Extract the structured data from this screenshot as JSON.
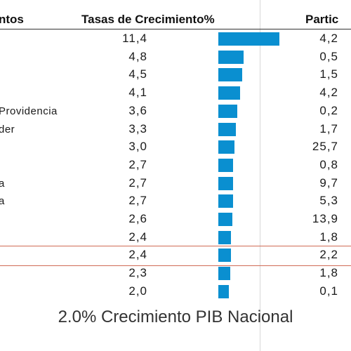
{
  "headers": {
    "departamentos": "ntos",
    "tasas": "Tasas de Crecimiento%",
    "participacion": "Partic"
  },
  "chart_data": {
    "type": "bar",
    "orientation": "horizontal",
    "series": [
      {
        "name": "Tasas de Crecimiento%",
        "values": [
          11.4,
          4.8,
          4.5,
          4.1,
          3.6,
          3.3,
          3.0,
          2.7,
          2.7,
          2.7,
          2.6,
          2.4,
          2.4,
          2.3,
          2.0
        ]
      }
    ],
    "rows": [
      {
        "label": "",
        "rate": "11,4",
        "value": 11.4,
        "share": "4,2"
      },
      {
        "label": "",
        "rate": "4,8",
        "value": 4.8,
        "share": "0,5"
      },
      {
        "label": "",
        "rate": "4,5",
        "value": 4.5,
        "share": "1,5"
      },
      {
        "label": "",
        "rate": "4,1",
        "value": 4.1,
        "share": "4,2"
      },
      {
        "label": " Providencia",
        "rate": "3,6",
        "value": 3.6,
        "share": "0,2"
      },
      {
        "label": "der",
        "rate": "3,3",
        "value": 3.3,
        "share": "1,7"
      },
      {
        "label": "",
        "rate": "3,0",
        "value": 3.0,
        "share": "25,7"
      },
      {
        "label": "",
        "rate": "2,7",
        "value": 2.7,
        "share": "0,8"
      },
      {
        "label": "a",
        "rate": "2,7",
        "value": 2.7,
        "share": "9,7"
      },
      {
        "label": "a",
        "rate": "2,7",
        "value": 2.7,
        "share": "5,3"
      },
      {
        "label": "",
        "rate": "2,6",
        "value": 2.6,
        "share": "13,9"
      },
      {
        "label": "",
        "rate": "2,4",
        "value": 2.4,
        "share": "1,8"
      },
      {
        "label": "",
        "rate": "2,4",
        "value": 2.4,
        "share": "2,2",
        "highlighted": true
      },
      {
        "label": "",
        "rate": "2,3",
        "value": 2.3,
        "share": "1,8"
      },
      {
        "label": "",
        "rate": "2,0",
        "value": 2.0,
        "share": "0,1"
      }
    ],
    "bar_color": "#0a8fd0",
    "highlight_color": "#d06a55",
    "grid": false,
    "legend": "none"
  },
  "footer": {
    "caption": "2.0% Crecimiento PIB Nacional"
  }
}
